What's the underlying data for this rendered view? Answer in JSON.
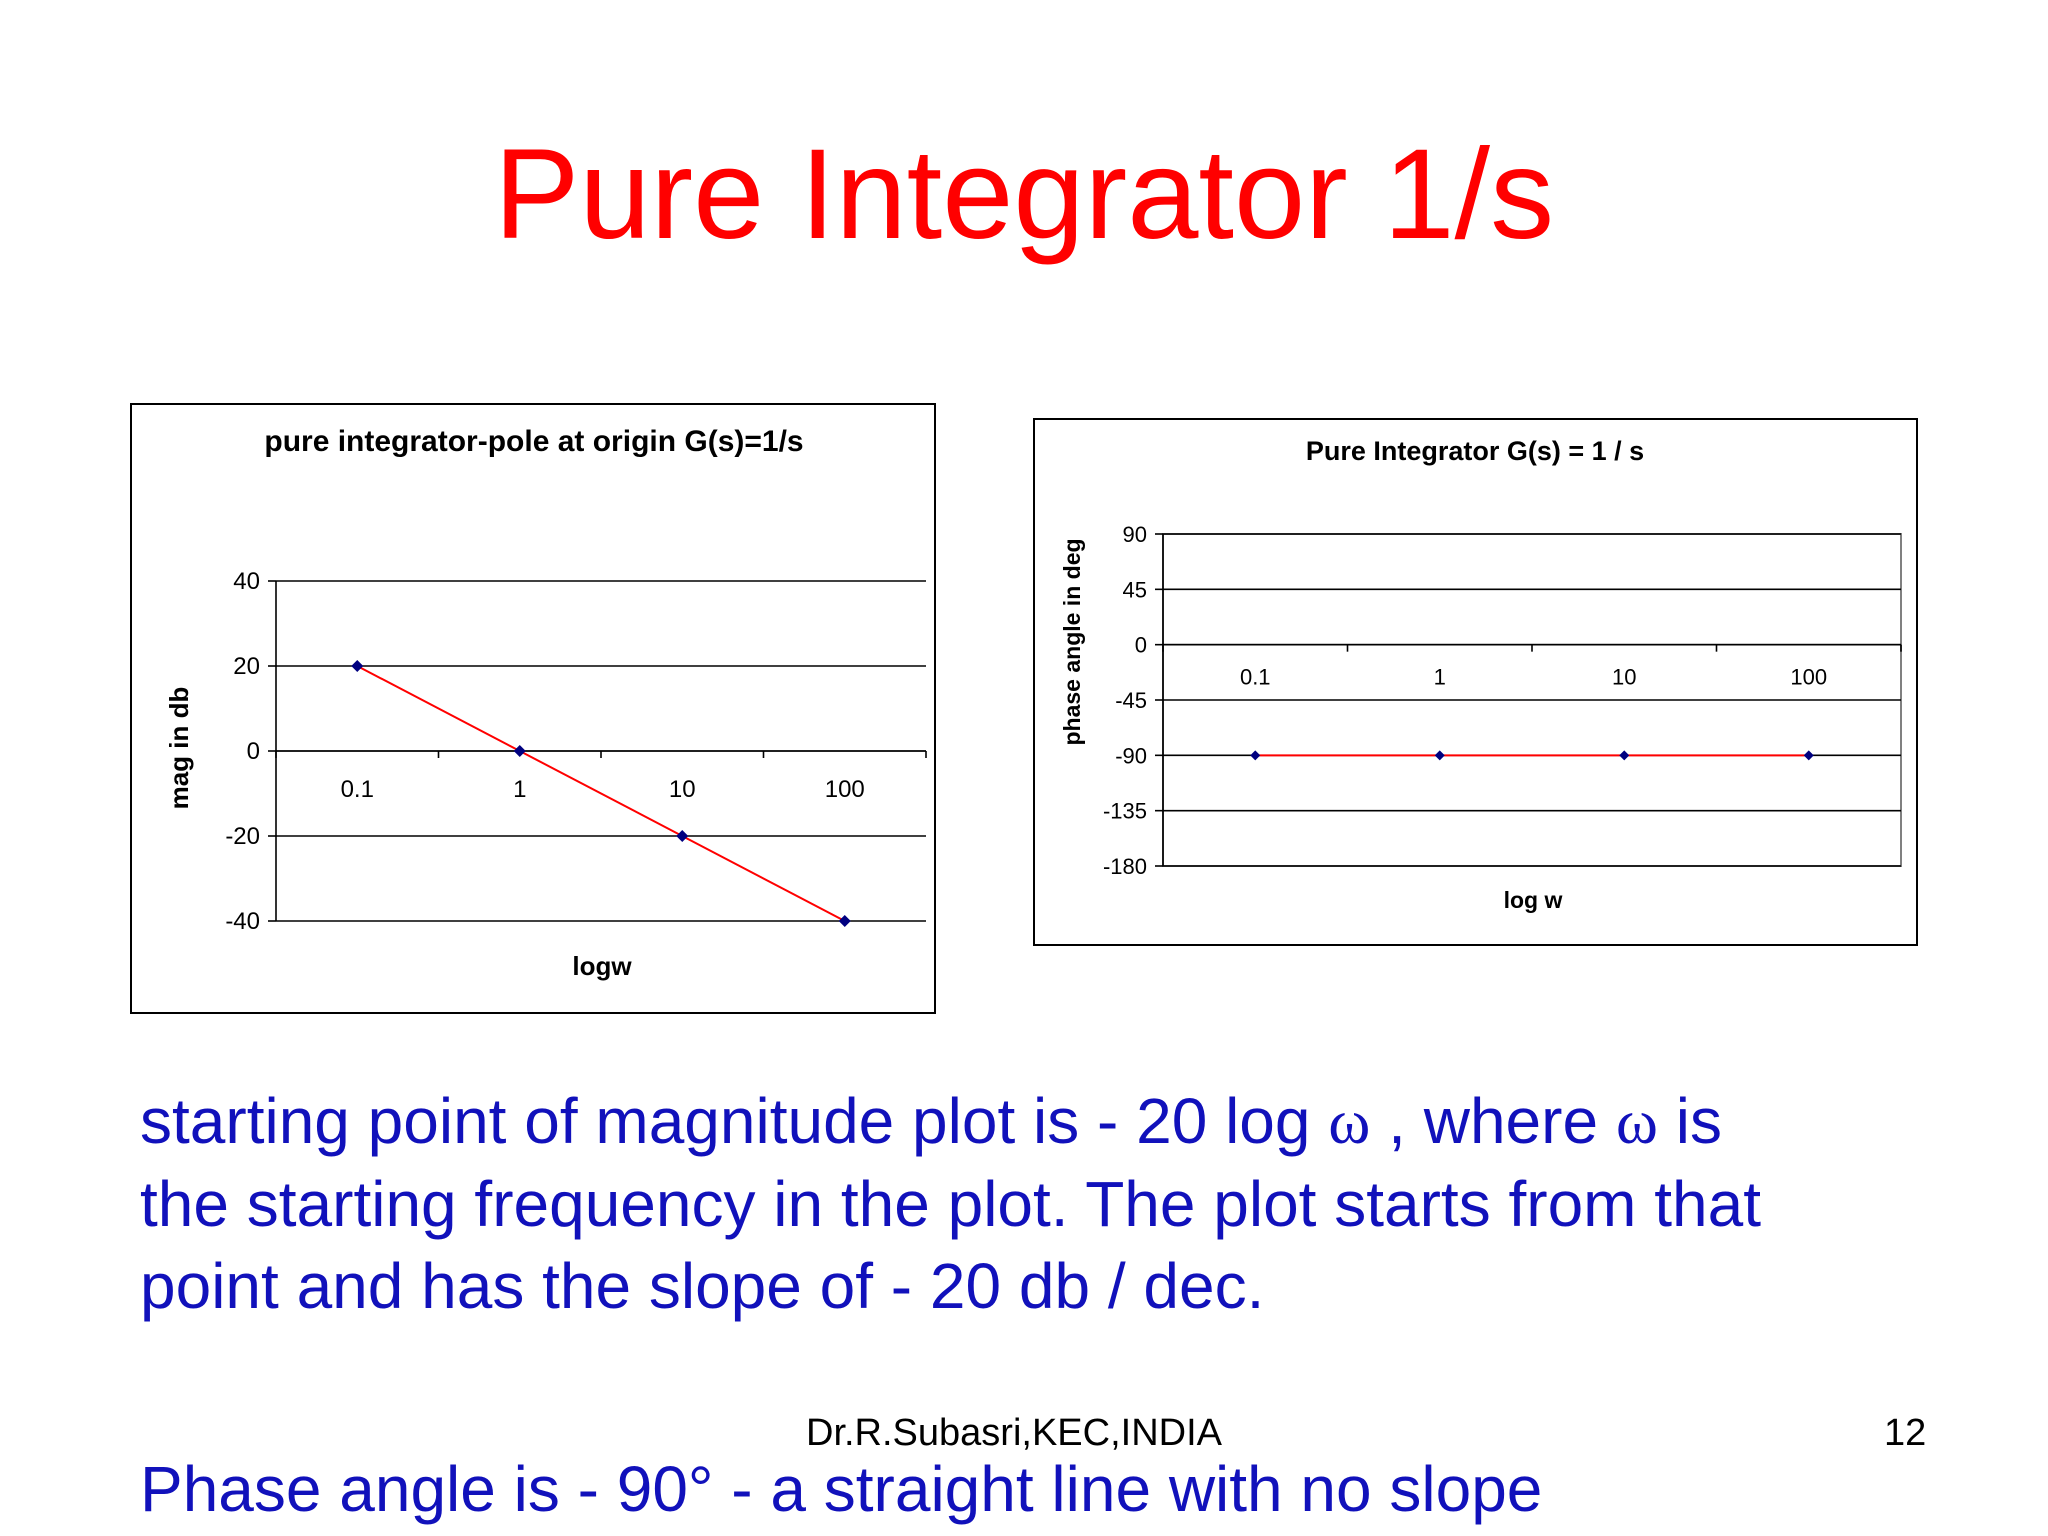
{
  "slide": {
    "title": "Pure Integrator 1/s",
    "paragraph": {
      "line1_a": "starting point of magnitude plot is - 20 log ",
      "omega": "ω",
      "line1_b": " , where ",
      "line1_c": " is",
      "line2": "the starting frequency in the plot. The plot starts from that",
      "line3": "point and has the slope of  - 20 db / dec."
    },
    "phase_line": "Phase angle is - 90° - a  straight line with no slope",
    "footer_author": "Dr.R.Subasri,KEC,INDIA",
    "page_number": "12"
  },
  "colors": {
    "title": "#ff0000",
    "body_text": "#1111bb",
    "series_line": "#ff0000",
    "marker": "#000080"
  },
  "chart_data": [
    {
      "type": "line",
      "title": "pure integrator-pole at origin G(s)=1/s",
      "xlabel": "logw",
      "ylabel": "mag in db",
      "categories": [
        "0.1",
        "1",
        "10",
        "100"
      ],
      "values": [
        20,
        0,
        -20,
        -40
      ],
      "ylim": [
        -40,
        40
      ],
      "yticks": [
        "40",
        "20",
        "0",
        "-20",
        "-40"
      ],
      "grid": true,
      "legend": "none"
    },
    {
      "type": "line",
      "title": "Pure Integrator G(s) = 1 / s",
      "xlabel": "log w",
      "ylabel": "phase angle in deg",
      "categories": [
        "0.1",
        "1",
        "10",
        "100"
      ],
      "values": [
        -90,
        -90,
        -90,
        -90
      ],
      "ylim": [
        -180,
        90
      ],
      "yticks": [
        "90",
        "45",
        "0",
        "-45",
        "-90",
        "-135",
        "-180"
      ],
      "grid": true,
      "legend": "none"
    }
  ]
}
